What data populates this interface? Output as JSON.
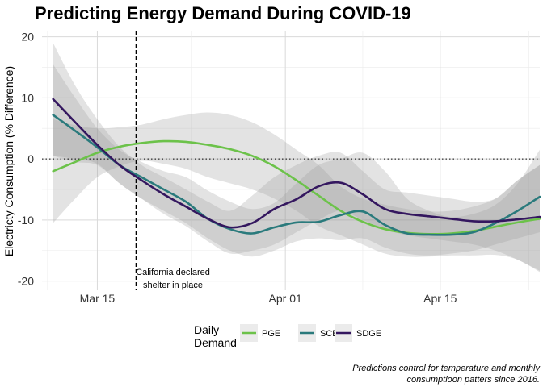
{
  "chart_data": {
    "type": "line",
    "title": "Predicting Energy Demand During COVID-19",
    "xlabel": "",
    "ylabel": "Electricty Consumption (% Difference)",
    "x_ticks": [
      "Mar 15",
      "Apr 01",
      "Apr 15"
    ],
    "x_tick_days": [
      0,
      17,
      31
    ],
    "xlim": [
      -5,
      40
    ],
    "ylim": [
      -21.5,
      21
    ],
    "y_ticks": [
      20,
      10,
      0,
      -10,
      -20
    ],
    "grid": true,
    "reference_hline": 0,
    "reference_vline_day": 3.5,
    "annotation": [
      "California declared",
      "shelter in place"
    ],
    "legend_title": [
      "Daily",
      "Demand"
    ],
    "legend_position": "bottom",
    "caption": [
      "Predictions control for temperature and monthly",
      "consumptioon patters since 2016."
    ],
    "series": [
      {
        "name": "PGE",
        "color": "#6cc24a",
        "x": [
          -4,
          -2,
          0,
          2,
          4,
          6,
          8,
          10,
          12,
          14,
          16,
          18,
          20,
          22,
          24,
          26,
          28,
          30,
          32,
          34,
          36,
          38,
          40
        ],
        "values": [
          -2.0,
          -0.5,
          1.0,
          2.0,
          2.6,
          2.9,
          2.8,
          2.3,
          1.6,
          0.5,
          -1.2,
          -3.5,
          -6.0,
          -8.5,
          -10.3,
          -11.5,
          -12.1,
          -12.3,
          -12.2,
          -11.8,
          -11.1,
          -10.4,
          -9.8
        ],
        "band_upper": [
          6.5,
          5.5,
          5.0,
          5.2,
          5.6,
          6.5,
          7.2,
          7.6,
          7.2,
          6.0,
          4.0,
          1.5,
          -1.0,
          -4.5,
          -6.5,
          -7.5,
          -8.2,
          -8.6,
          -8.5,
          -7.8,
          -6.5,
          -3.5,
          -1.0
        ],
        "band_lower": [
          -10.5,
          -6.5,
          -3.0,
          -1.2,
          -0.3,
          -0.8,
          -1.6,
          -3.0,
          -4.0,
          -5.0,
          -6.5,
          -8.5,
          -11.0,
          -12.5,
          -14.0,
          -15.5,
          -16.0,
          -16.0,
          -15.8,
          -15.8,
          -15.7,
          -16.5,
          -18.5
        ]
      },
      {
        "name": "SCE",
        "color": "#2a7a7c",
        "x": [
          -4,
          -2,
          0,
          2,
          4,
          6,
          8,
          10,
          12,
          14,
          16,
          18,
          20,
          22,
          24,
          26,
          28,
          30,
          32,
          34,
          36,
          38,
          40
        ],
        "values": [
          7.2,
          4.6,
          1.9,
          -1.0,
          -3.0,
          -5.0,
          -7.0,
          -9.8,
          -11.5,
          -12.2,
          -11.2,
          -10.4,
          -10.3,
          -9.2,
          -8.6,
          -10.8,
          -12.2,
          -12.4,
          -12.4,
          -12.0,
          -10.5,
          -8.5,
          -6.2
        ],
        "band_upper": [
          15.5,
          10.0,
          5.0,
          1.5,
          -0.5,
          -2.0,
          -3.0,
          -5.2,
          -7.0,
          -8.2,
          -7.2,
          -4.0,
          -1.0,
          0.0,
          1.0,
          -2.0,
          -6.5,
          -8.5,
          -9.5,
          -9.0,
          -7.5,
          -4.0,
          1.5
        ],
        "band_lower": [
          0.5,
          -0.5,
          -1.0,
          -4.0,
          -6.5,
          -8.5,
          -10.5,
          -13.0,
          -15.0,
          -16.0,
          -15.0,
          -13.5,
          -13.0,
          -13.3,
          -13.0,
          -14.5,
          -15.5,
          -15.8,
          -15.5,
          -15.0,
          -14.0,
          -13.0,
          -12.0
        ]
      },
      {
        "name": "SDGE",
        "color": "#34175f",
        "x": [
          -4,
          -2,
          0,
          2,
          4,
          6,
          8,
          10,
          12,
          14,
          16,
          18,
          20,
          22,
          24,
          26,
          28,
          30,
          32,
          34,
          36,
          38,
          40
        ],
        "values": [
          9.8,
          6.0,
          2.3,
          -1.0,
          -3.5,
          -5.8,
          -7.8,
          -9.8,
          -11.2,
          -10.5,
          -8.2,
          -6.6,
          -4.5,
          -3.9,
          -5.8,
          -8.2,
          -9.0,
          -9.4,
          -9.8,
          -10.2,
          -10.2,
          -9.9,
          -9.5
        ],
        "band_upper": [
          19.0,
          12.0,
          6.5,
          2.0,
          -1.0,
          -3.0,
          -5.0,
          -7.0,
          -8.5,
          -6.0,
          -3.0,
          -1.0,
          0.5,
          1.0,
          -2.0,
          -5.0,
          -5.5,
          -6.0,
          -6.5,
          -7.0,
          -6.5,
          -3.5,
          -1.0
        ],
        "band_lower": [
          0.5,
          0.0,
          -0.8,
          -4.0,
          -6.5,
          -9.0,
          -11.0,
          -13.5,
          -15.5,
          -15.0,
          -14.0,
          -12.0,
          -10.0,
          -8.5,
          -10.0,
          -11.5,
          -12.5,
          -13.0,
          -13.5,
          -14.0,
          -15.0,
          -16.5,
          -18.3
        ]
      }
    ]
  }
}
